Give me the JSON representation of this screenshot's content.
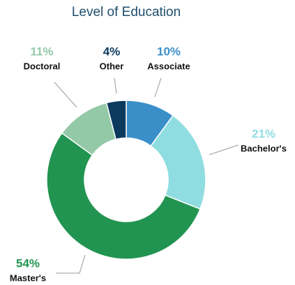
{
  "chart_data": {
    "type": "pie",
    "title": "Level of Education",
    "categories": [
      "Associate",
      "Bachelor's",
      "Master's",
      "Doctoral",
      "Other"
    ],
    "values": [
      10,
      21,
      54,
      11,
      4
    ],
    "value_labels": [
      "10%",
      "21%",
      "54%",
      "11%",
      "4%"
    ],
    "colors": [
      "#3a8fc9",
      "#8fdde0",
      "#229451",
      "#93c9a7",
      "#0b3a5e"
    ]
  }
}
